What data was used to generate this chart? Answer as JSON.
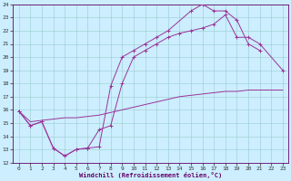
{
  "xlabel": "Windchill (Refroidissement éolien,°C)",
  "background_color": "#cceeff",
  "line_color": "#993399",
  "xlim": [
    -0.5,
    23.5
  ],
  "ylim": [
    12,
    24
  ],
  "xticks": [
    0,
    1,
    2,
    3,
    4,
    5,
    6,
    7,
    8,
    9,
    10,
    11,
    12,
    13,
    14,
    15,
    16,
    17,
    18,
    19,
    20,
    21,
    22,
    23
  ],
  "yticks": [
    12,
    13,
    14,
    15,
    16,
    17,
    18,
    19,
    20,
    21,
    22,
    23,
    24
  ],
  "line1_x": [
    0,
    1,
    2,
    3,
    4,
    5,
    6,
    7,
    8,
    9,
    10,
    11,
    12,
    13,
    15,
    16,
    17,
    18,
    19,
    20,
    21
  ],
  "line1_y": [
    15.9,
    14.8,
    15.1,
    13.1,
    12.5,
    13.0,
    13.1,
    13.2,
    17.8,
    20.0,
    20.5,
    21.0,
    21.5,
    22.0,
    23.5,
    24.0,
    23.5,
    23.5,
    22.8,
    21.0,
    20.5
  ],
  "line2_x": [
    0,
    1,
    2,
    3,
    4,
    5,
    6,
    7,
    8,
    9,
    10,
    11,
    12,
    13,
    14,
    15,
    16,
    17,
    18,
    19,
    20,
    21,
    23
  ],
  "line2_y": [
    15.9,
    14.8,
    15.1,
    13.1,
    12.5,
    13.0,
    13.1,
    14.5,
    14.8,
    18.0,
    20.0,
    20.5,
    21.0,
    21.5,
    21.8,
    22.0,
    22.2,
    22.5,
    23.2,
    21.5,
    21.5,
    21.0,
    19.0
  ],
  "line3_x": [
    0,
    1,
    2,
    3,
    4,
    5,
    6,
    7,
    8,
    9,
    10,
    11,
    12,
    13,
    14,
    15,
    16,
    17,
    18,
    19,
    20,
    21,
    22,
    23
  ],
  "line3_y": [
    15.9,
    15.1,
    15.2,
    15.3,
    15.4,
    15.4,
    15.5,
    15.6,
    15.8,
    16.0,
    16.2,
    16.4,
    16.6,
    16.8,
    17.0,
    17.1,
    17.2,
    17.3,
    17.4,
    17.4,
    17.5,
    17.5,
    17.5,
    17.5
  ]
}
